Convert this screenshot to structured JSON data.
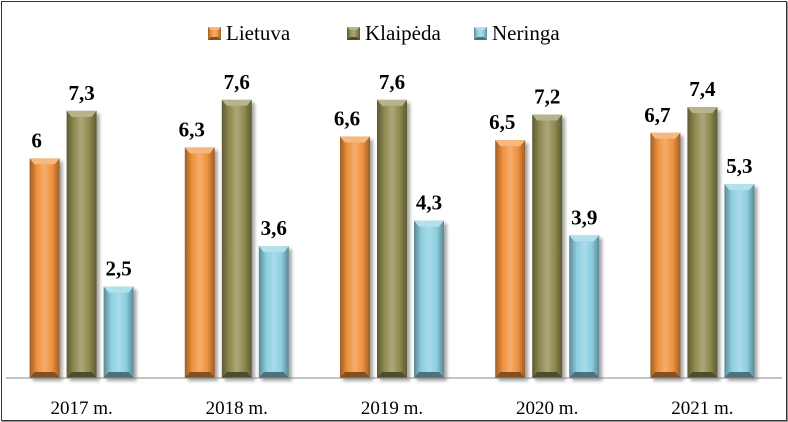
{
  "chart_data": {
    "type": "bar",
    "categories": [
      "2017 m.",
      "2018 m.",
      "2019 m.",
      "2020 m.",
      "2021 m."
    ],
    "series": [
      {
        "name": "Lietuva",
        "color": "#f0913c",
        "values": [
          6,
          6.3,
          6.6,
          6.5,
          6.7
        ],
        "labels": [
          "6",
          "6,3",
          "6,6",
          "6,5",
          "6,7"
        ]
      },
      {
        "name": "Klaipėda",
        "color": "#8f8a4f",
        "values": [
          7.3,
          7.6,
          7.6,
          7.2,
          7.4
        ],
        "labels": [
          "7,3",
          "7,6",
          "7,6",
          "7,2",
          "7,4"
        ]
      },
      {
        "name": "Neringa",
        "color": "#8ccfe0",
        "values": [
          2.5,
          3.6,
          4.3,
          3.9,
          5.3
        ],
        "labels": [
          "2,5",
          "3,6",
          "4,3",
          "3,9",
          "5,3"
        ]
      }
    ],
    "title": "",
    "xlabel": "",
    "ylabel": "",
    "ylim": [
      0,
      8
    ],
    "grid": false,
    "legend": "top-center",
    "data_labels": true
  }
}
